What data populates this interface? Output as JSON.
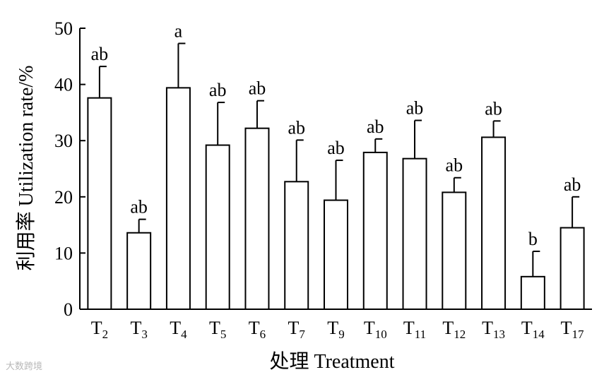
{
  "chart_data": {
    "type": "bar",
    "title": "",
    "xlabel": "处理 Treatment",
    "ylabel": "利用率 Utilization rate/%",
    "ylim": [
      0,
      50
    ],
    "yticks": [
      0,
      10,
      20,
      30,
      40,
      50
    ],
    "grid": false,
    "categories": [
      {
        "base": "T",
        "sub": "2"
      },
      {
        "base": "T",
        "sub": "3"
      },
      {
        "base": "T",
        "sub": "4"
      },
      {
        "base": "T",
        "sub": "5"
      },
      {
        "base": "T",
        "sub": "6"
      },
      {
        "base": "T",
        "sub": "7"
      },
      {
        "base": "T",
        "sub": "9"
      },
      {
        "base": "T",
        "sub": "10"
      },
      {
        "base": "T",
        "sub": "11"
      },
      {
        "base": "T",
        "sub": "12"
      },
      {
        "base": "T",
        "sub": "13"
      },
      {
        "base": "T",
        "sub": "14"
      },
      {
        "base": "T",
        "sub": "17"
      }
    ],
    "values": [
      37.6,
      13.6,
      39.4,
      29.2,
      32.2,
      22.7,
      19.4,
      27.9,
      26.8,
      20.8,
      30.6,
      5.8,
      14.5
    ],
    "errors": [
      5.6,
      2.4,
      7.9,
      7.6,
      4.9,
      7.4,
      7.1,
      2.4,
      6.8,
      2.6,
      2.9,
      4.5,
      5.5
    ],
    "significance": [
      "ab",
      "ab",
      "a",
      "ab",
      "ab",
      "ab",
      "ab",
      "ab",
      "ab",
      "ab",
      "ab",
      "b",
      "ab"
    ]
  },
  "watermark": "大数跨境"
}
